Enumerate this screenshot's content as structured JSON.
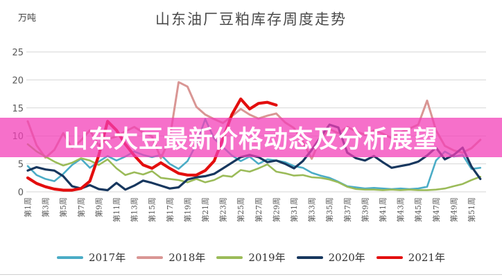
{
  "page": {
    "banner_text": "山东大豆最新价格动态及分析展望",
    "colors": {
      "banner_overlay": "rgba(243,62,183,0.74)",
      "banner_text": "#ffffff",
      "grid": "#d6d6d6",
      "axis_text": "#595959",
      "title_text": "#4a4a4a"
    }
  },
  "chart_data": {
    "type": "line",
    "title": "山东油厂豆粕库存周度走势",
    "ylabel": "万吨",
    "ylim": [
      0,
      25
    ],
    "yticks": [
      0,
      5,
      10,
      15,
      20,
      25
    ],
    "grid": "horizontal-only",
    "legend_position": "bottom",
    "weeks": 52,
    "x_tick_labels": [
      "第1周",
      "第3周",
      "第5周",
      "第7周",
      "第9周",
      "第11周",
      "第13周",
      "第15周",
      "第17周",
      "第19周",
      "第21周",
      "第23周",
      "第25周",
      "第27周",
      "第29周",
      "第31周",
      "第33周",
      "第35周",
      "第37周",
      "第39周",
      "第41周",
      "第43周",
      "第45周",
      "第47周",
      "第49周",
      "第51周"
    ],
    "series": [
      {
        "name": "2017年",
        "color": "#4BACC6",
        "width": 2.6,
        "values": [
          4.6,
          3.0,
          2.3,
          1.9,
          3.2,
          4.8,
          5.9,
          4.3,
          5.4,
          6.4,
          5.6,
          6.3,
          7.2,
          6.6,
          6.2,
          6.6,
          5.0,
          4.1,
          5.5,
          8.5,
          13.0,
          9.5,
          8.0,
          6.5,
          5.5,
          6.3,
          5.0,
          5.8,
          5.6,
          5.3,
          4.6,
          4.3,
          3.4,
          2.9,
          2.5,
          1.8,
          1.0,
          0.8,
          0.6,
          0.7,
          0.6,
          0.5,
          0.6,
          0.5,
          0.6,
          0.9,
          5.6,
          7.2,
          6.3,
          6.6,
          4.1,
          4.3
        ]
      },
      {
        "name": "2018年",
        "color": "#D99694",
        "width": 3,
        "values": [
          12.6,
          8.3,
          6.1,
          7.5,
          10.5,
          7.8,
          9.2,
          11.0,
          8.3,
          9.4,
          9.9,
          10.8,
          11.6,
          10.6,
          9.9,
          6.0,
          9.5,
          19.6,
          18.8,
          15.2,
          13.8,
          13.0,
          12.3,
          13.5,
          14.8,
          13.8,
          13.1,
          13.6,
          14.0,
          12.4,
          11.4,
          9.0,
          5.9,
          9.5,
          11.2,
          10.5,
          11.6,
          10.8,
          10.2,
          11.0,
          10.4,
          9.6,
          10.6,
          11.3,
          12.0,
          16.3,
          11.0,
          8.2,
          7.4,
          7.0,
          7.8,
          9.3
        ]
      },
      {
        "name": "2019年",
        "color": "#9BBB59",
        "width": 2.6,
        "values": [
          8.5,
          7.2,
          6.3,
          5.4,
          4.7,
          5.2,
          6.0,
          5.6,
          4.8,
          5.8,
          4.2,
          3.0,
          3.5,
          3.1,
          3.7,
          2.5,
          2.3,
          2.1,
          1.7,
          2.3,
          1.7,
          2.1,
          2.9,
          2.7,
          3.9,
          3.6,
          4.2,
          4.9,
          3.6,
          3.3,
          2.9,
          3.0,
          2.6,
          2.5,
          2.2,
          1.7,
          0.9,
          0.5,
          0.4,
          0.4,
          0.3,
          0.4,
          0.3,
          0.4,
          0.3,
          0.3,
          0.4,
          0.6,
          1.0,
          1.4,
          2.1,
          2.7
        ]
      },
      {
        "name": "2020年",
        "color": "#17375E",
        "width": 3.2,
        "values": [
          3.8,
          4.4,
          4.0,
          3.8,
          2.8,
          1.0,
          0.6,
          1.2,
          0.5,
          0.3,
          1.6,
          0.4,
          1.1,
          2.0,
          1.6,
          1.1,
          0.6,
          0.8,
          2.2,
          2.6,
          2.8,
          3.2,
          4.2,
          5.2,
          6.2,
          6.6,
          6.2,
          5.3,
          5.6,
          5.0,
          4.2,
          5.5,
          7.5,
          9.8,
          12.0,
          11.5,
          7.0,
          6.0,
          5.6,
          6.4,
          5.3,
          4.3,
          4.6,
          4.9,
          5.4,
          6.5,
          7.9,
          5.8,
          6.6,
          7.9,
          4.5,
          2.3
        ]
      },
      {
        "name": "2021年",
        "color": "#E30E0E",
        "width": 4.2,
        "values": [
          2.5,
          1.5,
          0.9,
          0.5,
          0.3,
          0.3,
          0.6,
          1.9,
          6.5,
          12.6,
          11.0,
          8.5,
          6.5,
          4.8,
          4.2,
          5.2,
          4.2,
          3.3,
          3.0,
          3.0,
          3.8,
          5.5,
          9.5,
          13.8,
          16.6,
          14.8,
          15.8,
          16.0,
          15.5
        ]
      }
    ]
  }
}
